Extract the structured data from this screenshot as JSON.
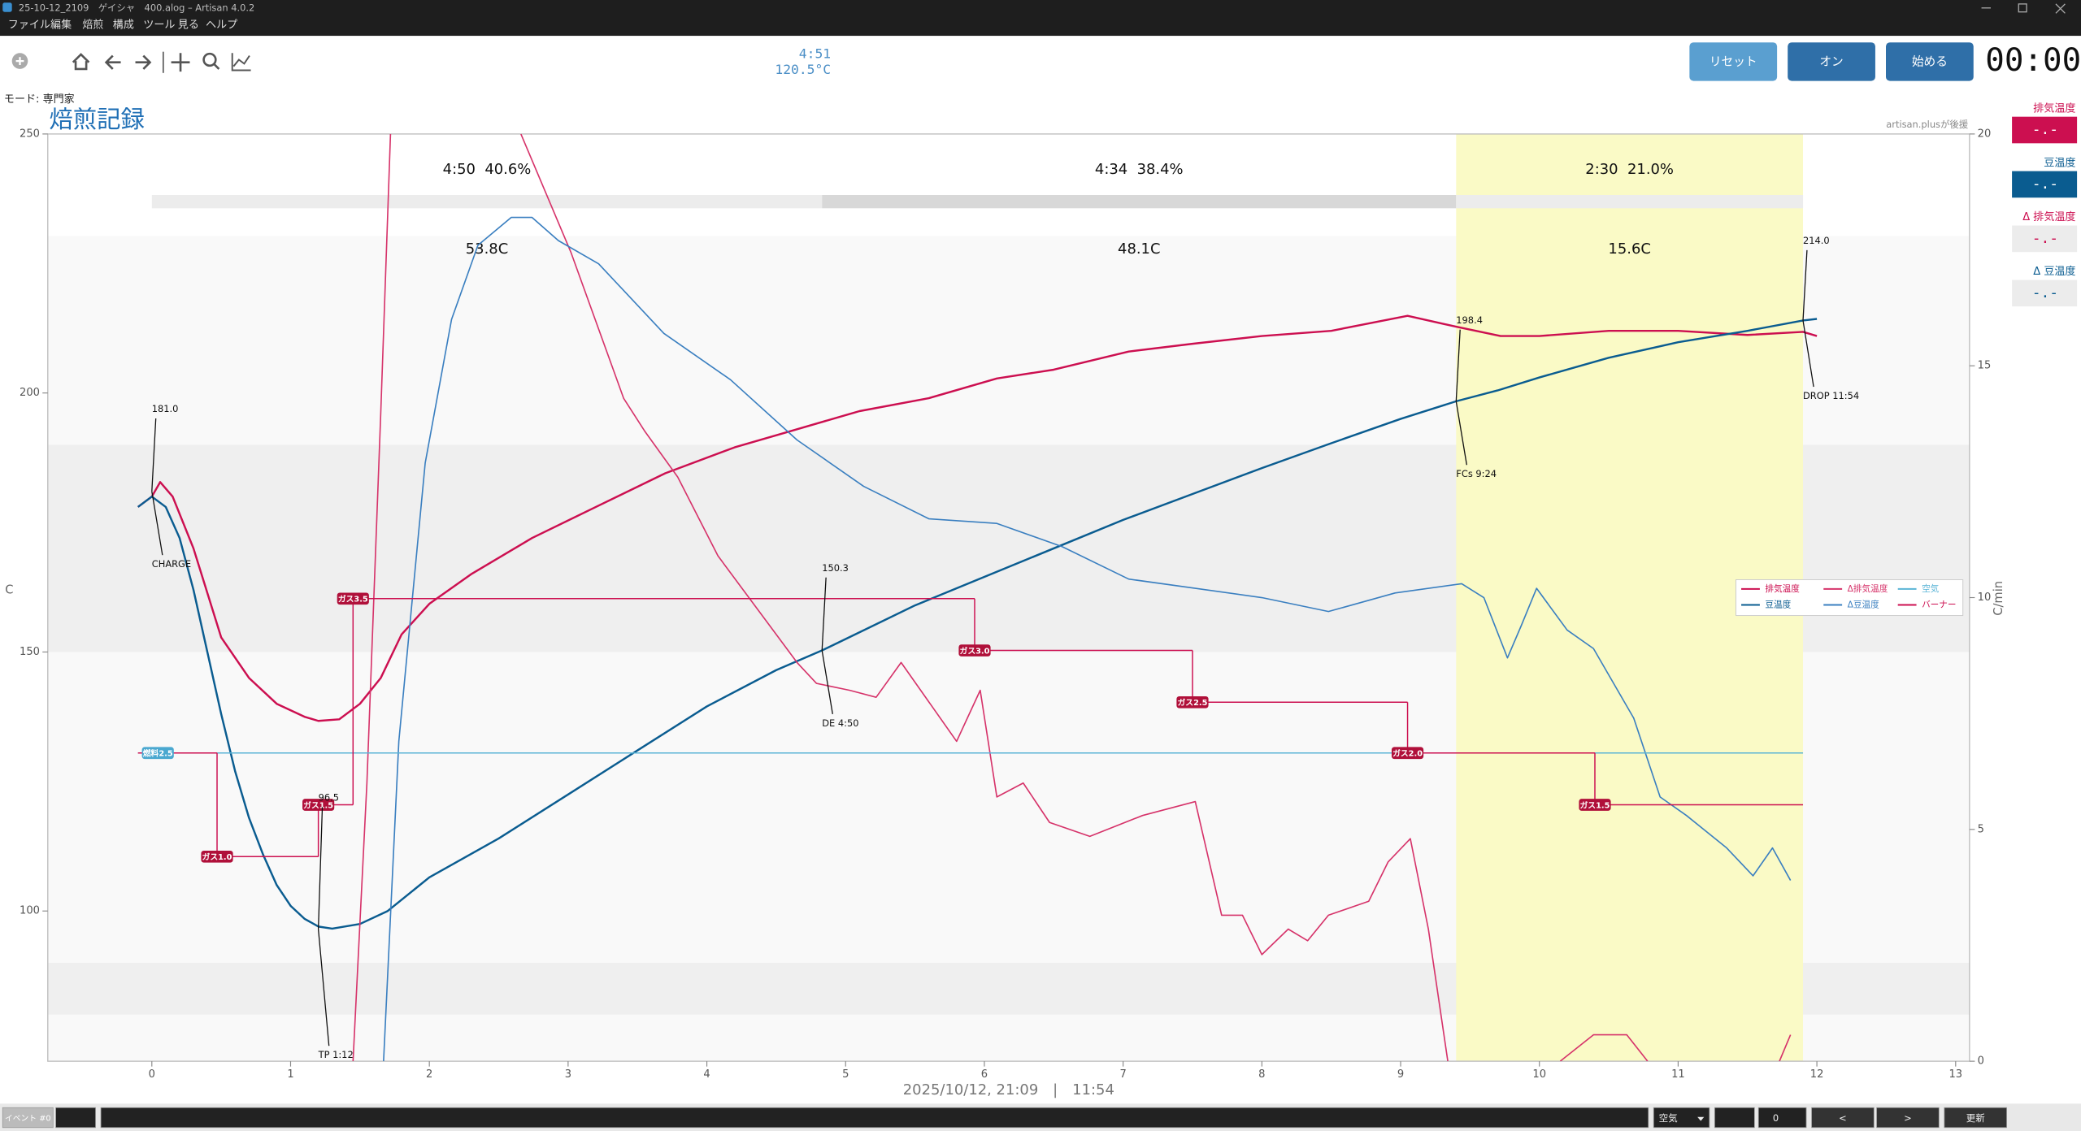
{
  "window": {
    "title": "25-10-12_2109　ゲイシャ　400.alog – Artisan 4.0.2"
  },
  "menu": [
    "ファイル",
    "編集",
    "焙煎",
    "構成",
    "ツール",
    "見る",
    "ヘルプ"
  ],
  "readout": {
    "time": "4:51",
    "temp": "120.5°C"
  },
  "buttons": [
    "リセット",
    "オン",
    "始める"
  ],
  "timer": "00:00",
  "mode": "モード: 専門家",
  "sponsor": "artisan.plusが後援",
  "lcds": [
    {
      "label": "排気温度",
      "value": "-.-"
    },
    {
      "label": "豆温度",
      "value": "-.-"
    },
    {
      "label": "Δ 排気温度",
      "value": "-.-"
    },
    {
      "label": "Δ 豆温度",
      "value": "-.-"
    }
  ],
  "bottom": {
    "event": "イベント #0",
    "air": "空気",
    "spin": "0",
    "prev": "<",
    "next": ">",
    "apply": "更新"
  },
  "chart_data": {
    "type": "line",
    "title": "焙煎記録",
    "xlabel": "2025/10/12, 21:09　|　11:54",
    "ylabel": "C",
    "y2label": "C/min",
    "xlim": [
      -0.75,
      13.1
    ],
    "xticks": [
      0,
      1,
      2,
      3,
      4,
      5,
      6,
      7,
      8,
      9,
      10,
      11,
      12,
      13
    ],
    "ylim": [
      71,
      250
    ],
    "yticks": [
      100,
      150,
      200,
      250
    ],
    "y2lim": [
      0,
      20
    ],
    "y2ticks": [
      0,
      5,
      10,
      15,
      20
    ],
    "bands": [
      [
        150,
        190
      ],
      [
        80,
        90
      ]
    ],
    "phases": [
      {
        "label": "4:50  40.6%",
        "delta": "53.8C",
        "start": 0,
        "end": 4.83
      },
      {
        "label": "4:34  38.4%",
        "delta": "48.1C",
        "start": 4.83,
        "end": 9.4
      },
      {
        "label": "2:30  21.0%",
        "delta": "15.6C",
        "start": 9.4,
        "end": 11.9
      }
    ],
    "series": [
      {
        "name": "排気温度",
        "color": "#cc0f50",
        "x": [
          -0.1,
          0,
          0.06,
          0.15,
          0.3,
          0.5,
          0.7,
          0.9,
          1.1,
          1.2,
          1.35,
          1.5,
          1.65,
          1.8,
          2,
          2.3,
          2.74,
          3.2,
          3.7,
          4.2,
          4.65,
          5.1,
          5.6,
          6.09,
          6.5,
          7.04,
          7.5,
          8,
          8.5,
          9.05,
          9.4,
          9.72,
          10,
          10.5,
          11,
          11.5,
          11.9,
          12
        ],
        "values": [
          178,
          180,
          182.8,
          180,
          170,
          152.8,
          145,
          140,
          137.5,
          136.7,
          137,
          140,
          145,
          153.4,
          159.3,
          165,
          172,
          178,
          184.5,
          189.5,
          193,
          196.5,
          199,
          202.8,
          204.5,
          208,
          209.5,
          211,
          212,
          214.9,
          212.8,
          211,
          211,
          212,
          212,
          211.2,
          211.8,
          211
        ]
      },
      {
        "name": "豆温度",
        "color": "#0a5c90",
        "x": [
          -0.1,
          0,
          0.1,
          0.2,
          0.3,
          0.4,
          0.5,
          0.6,
          0.7,
          0.8,
          0.9,
          1.0,
          1.1,
          1.2,
          1.3,
          1.5,
          1.7,
          2,
          2.5,
          3,
          3.5,
          4,
          4.5,
          4.83,
          5,
          5.5,
          6,
          6.5,
          7,
          7.5,
          8,
          8.5,
          9,
          9.4,
          9.7,
          10,
          10.5,
          11,
          11.5,
          11.9,
          12
        ],
        "values": [
          178,
          180,
          178,
          172,
          162,
          150,
          138,
          127,
          118,
          111,
          105,
          101,
          98.5,
          97,
          96.6,
          97.5,
          100,
          106.5,
          114,
          122.5,
          131,
          139.5,
          146.5,
          150.3,
          152.5,
          159,
          164.5,
          170,
          175.5,
          180.5,
          185.5,
          190.3,
          195,
          198.4,
          200.5,
          203,
          206.8,
          209.8,
          212,
          214,
          214.3
        ]
      },
      {
        "name": "Δ排気温度",
        "color": "#d6336a",
        "axis": "y2",
        "x": [
          1.45,
          1.55,
          1.65,
          1.72,
          null,
          2.66,
          3.02,
          3.4,
          3.55,
          3.79,
          4.08,
          4.65,
          4.79,
          5.03,
          5.22,
          5.4,
          5.8,
          5.97,
          6.09,
          6.28,
          6.47,
          6.76,
          7.14,
          7.52,
          7.71,
          7.86,
          8,
          8.19,
          8.33,
          8.48,
          8.77,
          8.91,
          9.07,
          9.2,
          9.34,
          null,
          10.15,
          10.39,
          10.63,
          10.78,
          null,
          11.73,
          11.81
        ],
        "values": [
          0,
          6,
          14,
          20,
          null,
          20,
          17.45,
          14.3,
          13.6,
          12.6,
          10.9,
          8.6,
          8.15,
          8,
          7.85,
          8.6,
          6.9,
          8,
          5.7,
          6,
          5.15,
          4.85,
          5.3,
          5.6,
          3.15,
          3.15,
          2.3,
          2.85,
          2.6,
          3.15,
          3.45,
          4.3,
          4.8,
          2.85,
          0,
          null,
          0,
          0.57,
          0.57,
          0,
          null,
          0,
          0.57
        ]
      },
      {
        "name": "Δ豆温度",
        "color": "#3a7fc0",
        "axis": "y2",
        "x": [
          1.67,
          1.78,
          1.97,
          2.16,
          2.35,
          2.59,
          2.74,
          2.93,
          3.22,
          3.69,
          4.17,
          4.65,
          5.13,
          5.6,
          6.09,
          6.56,
          7.04,
          7.52,
          8,
          8.48,
          8.96,
          9.44,
          9.6,
          9.77,
          9.87,
          9.98,
          10.2,
          10.39,
          10.68,
          10.87,
          11.06,
          11.35,
          11.54,
          11.68,
          11.81
        ],
        "values": [
          0,
          6.9,
          12.9,
          16,
          17.6,
          18.2,
          18.2,
          17.7,
          17.2,
          15.7,
          14.7,
          13.4,
          12.4,
          11.7,
          11.6,
          11.1,
          10.4,
          10.2,
          10,
          9.7,
          10.1,
          10.3,
          10,
          8.7,
          9.4,
          10.2,
          9.3,
          8.9,
          7.4,
          5.7,
          5.3,
          4.6,
          4,
          4.6,
          3.9
        ]
      },
      {
        "name": "空気",
        "color": "#5ab4d6",
        "x": [
          -0.1,
          11.9
        ],
        "values": [
          130.5,
          130.5
        ],
        "point_labels": [
          "燃料2.5",
          null
        ]
      },
      {
        "name": "バーナー",
        "color": "#cc0f50",
        "step": true,
        "end": 11.9,
        "x": [
          -0.1,
          0.47,
          1.2,
          1.45,
          5.93,
          7.5,
          9.05,
          10.4
        ],
        "values": [
          130.5,
          110.5,
          120.5,
          160.3,
          150.3,
          140.3,
          130.5,
          120.5
        ],
        "point_labels": [
          null,
          "ガス1.0",
          "ガス1.5",
          "ガス3.5",
          "ガス3.0",
          "ガス2.5",
          "ガス2.0",
          "ガス1.5"
        ]
      }
    ],
    "events": [
      {
        "label": "CHARGE",
        "time": 0,
        "temp": 181,
        "temp_label": "181.0"
      },
      {
        "label": "TP 1:12",
        "time": 1.2,
        "temp": 96.5
      },
      {
        "label": "DE 4:50",
        "time": 4.83,
        "temp": 150.3
      },
      {
        "label": "FCs 9:24",
        "time": 9.4,
        "temp": 198.4
      },
      {
        "label": "DROP 11:54",
        "time": 11.9,
        "temp": 214,
        "temp_label": "214.0"
      }
    ]
  }
}
